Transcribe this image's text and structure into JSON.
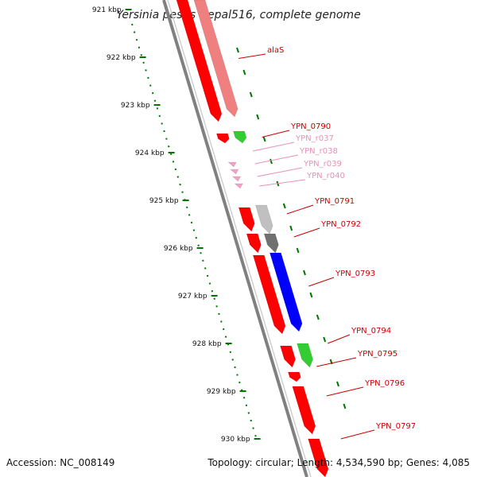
{
  "title": "Yersinia pestis Nepal516, complete genome",
  "accession": "Accession: NC_008149",
  "summary": "Topology: circular; Length: 4,534,590 bp; Genes: 4,085",
  "colors": {
    "cds_forward": "#ff0000",
    "cds_forward_light": "#f08080",
    "rna": "#33cc33",
    "trna": "#f5a0c8",
    "backbone": "#808080",
    "blue": "#0000ff",
    "light_gray": "#c0c0c0",
    "dark_gray": "#707070",
    "tick": "#007700",
    "label_cds": "#cc0000",
    "label_trna": "#e890b8"
  },
  "chart_data": {
    "type": "genome-map",
    "range_kbp": [
      920.8,
      930.8
    ],
    "ticks": [
      {
        "kbp": 921,
        "label": "921 kbp"
      },
      {
        "kbp": 922,
        "label": "922 kbp"
      },
      {
        "kbp": 923,
        "label": "923 kbp"
      },
      {
        "kbp": 924,
        "label": "924 kbp"
      },
      {
        "kbp": 925,
        "label": "925 kbp"
      },
      {
        "kbp": 926,
        "label": "926 kbp"
      },
      {
        "kbp": 927,
        "label": "927 kbp"
      },
      {
        "kbp": 928,
        "label": "928 kbp"
      },
      {
        "kbp": 929,
        "label": "929 kbp"
      },
      {
        "kbp": 930,
        "label": "930 kbp"
      }
    ],
    "features": [
      {
        "label": "alaS",
        "start": 920.8,
        "end": 923.25,
        "track": "plus",
        "color": "cds_forward_light",
        "label_kbp": 921.3,
        "label_color": "label_cds"
      },
      {
        "label": "",
        "start": 920.8,
        "end": 923.35,
        "track": "minus",
        "color": "cds_forward"
      },
      {
        "label": "YPN_0790",
        "start": 923.55,
        "end": 923.8,
        "track": "plus",
        "color": "rna",
        "label_kbp": 923.2,
        "label_color": "label_cds"
      },
      {
        "label": "",
        "start": 923.6,
        "end": 923.8,
        "track": "minus",
        "color": "cds_forward"
      },
      {
        "label": "YPN_r037",
        "start": 924.2,
        "end": 924.3,
        "track": "inner",
        "color": "trna",
        "label_kbp": 923.5,
        "label_color": "label_trna"
      },
      {
        "label": "YPN_r038",
        "start": 924.35,
        "end": 924.45,
        "track": "inner",
        "color": "trna",
        "label_kbp": 923.8,
        "label_color": "label_trna"
      },
      {
        "label": "YPN_r039",
        "start": 924.5,
        "end": 924.6,
        "track": "inner",
        "color": "trna",
        "label_kbp": 924.1,
        "label_color": "label_trna"
      },
      {
        "label": "YPN_r040",
        "start": 924.65,
        "end": 924.75,
        "track": "inner",
        "color": "trna",
        "label_kbp": 924.35,
        "label_color": "label_trna"
      },
      {
        "label": "YPN_0791",
        "start": 925.1,
        "end": 925.7,
        "track": "plus",
        "color": "light_gray",
        "label_kbp": 925.05,
        "label_color": "label_cds"
      },
      {
        "label": "",
        "start": 925.15,
        "end": 925.65,
        "track": "minus",
        "color": "cds_forward"
      },
      {
        "label": "YPN_0792",
        "start": 925.7,
        "end": 926.1,
        "track": "plus",
        "color": "dark_gray",
        "label_kbp": 925.6,
        "label_color": "label_cds"
      },
      {
        "label": "",
        "start": 925.7,
        "end": 926.1,
        "track": "minus",
        "color": "cds_forward"
      },
      {
        "label": "YPN_0793",
        "start": 926.1,
        "end": 927.75,
        "track": "plus",
        "color": "blue",
        "label_kbp": 926.7,
        "label_color": "label_cds"
      },
      {
        "label": "",
        "start": 926.15,
        "end": 927.8,
        "track": "minus",
        "color": "cds_forward"
      },
      {
        "label": "YPN_0794",
        "start": 928.0,
        "end": 928.5,
        "track": "plus",
        "color": "rna",
        "label_kbp": 927.95,
        "label_color": "label_cds"
      },
      {
        "label": "",
        "start": 928.05,
        "end": 928.5,
        "track": "minus",
        "color": "cds_forward"
      },
      {
        "label": "YPN_0795",
        "start": 928.6,
        "end": 928.8,
        "track": "minus",
        "color": "cds_forward",
        "label_kbp": 928.5,
        "label_color": "label_cds"
      },
      {
        "label": "YPN_0796",
        "start": 928.9,
        "end": 929.9,
        "track": "minus",
        "color": "cds_forward",
        "label_kbp": 929.2,
        "label_color": "label_cds"
      },
      {
        "label": "YPN_0797",
        "start": 930.0,
        "end": 930.8,
        "track": "minus",
        "color": "cds_forward",
        "label_kbp": 929.85,
        "label_color": "label_cds"
      }
    ]
  }
}
